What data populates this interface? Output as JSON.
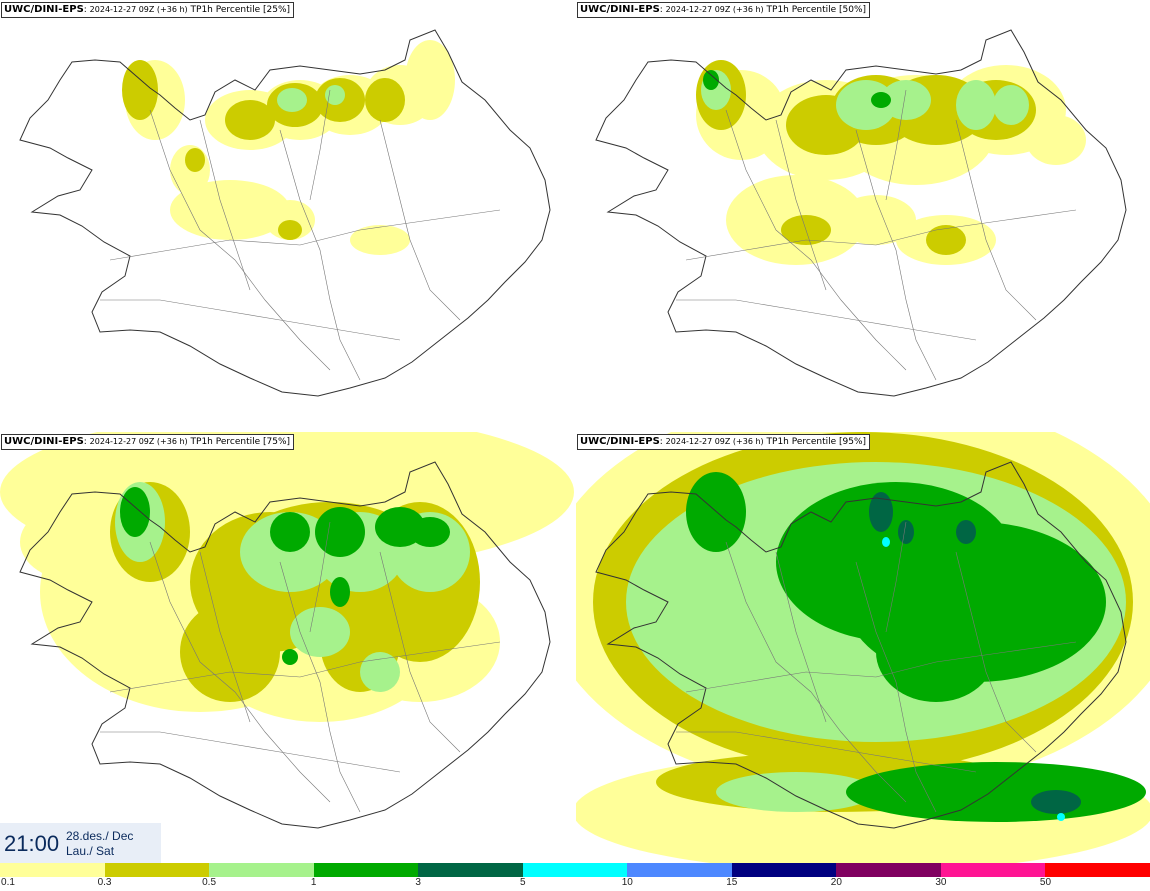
{
  "panels": [
    {
      "model": "UWC/DINI-EPS",
      "run": "2024-12-27 09Z (+36 h)",
      "field": "TP1h Percentile [25%]",
      "level": 1
    },
    {
      "model": "UWC/DINI-EPS",
      "run": "2024-12-27 09Z (+36 h)",
      "field": "TP1h Percentile [50%]",
      "level": 2
    },
    {
      "model": "UWC/DINI-EPS",
      "run": "2024-12-27 09Z (+36 h)",
      "field": "TP1h Percentile [75%]",
      "level": 3
    },
    {
      "model": "UWC/DINI-EPS",
      "run": "2024-12-27 09Z (+36 h)",
      "field": "TP1h Percentile [95%]",
      "level": 4
    }
  ],
  "valid_time": {
    "hour": "21:00",
    "date_line1": "28.des./ Dec",
    "date_line2": "Lau./ Sat"
  },
  "colorbar": {
    "colors": [
      "#ffff99",
      "#cccc00",
      "#a6f28c",
      "#00aa00",
      "#006644",
      "#00ffff",
      "#4d88ff",
      "#000080",
      "#800060",
      "#ff1493",
      "#ff0000"
    ],
    "tick_labels": [
      "0.1",
      "0.3",
      "0.5",
      "1",
      "3",
      "5",
      "10",
      "15",
      "20",
      "30",
      "50"
    ]
  }
}
